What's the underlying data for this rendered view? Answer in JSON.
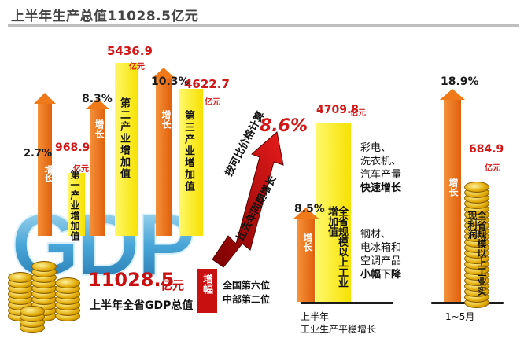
{
  "title": "上半年生产总值11028.5亿元",
  "gdp": {
    "total": "11028.5",
    "total_unit": "亿元",
    "total_label": "上半年全省GDP总值",
    "big_letters": "GDP",
    "growth": "8.6%",
    "growth_label_1": "按可比价格计算",
    "growth_label_2": "比去年同期增长",
    "growth_tag": "增幅",
    "rank_1": "全国第六位",
    "rank_2": "中部第二位"
  },
  "growth_word": "增长",
  "sectors": [
    {
      "name": "第一产业增加值",
      "value": "968.9",
      "unit": "亿元",
      "growth": "2.7%"
    },
    {
      "name": "第二产业增加值",
      "value": "5436.9",
      "unit": "亿元",
      "growth": "8.3%"
    },
    {
      "name": "第三产业增加值",
      "value": "4622.7",
      "unit": "亿元",
      "growth": "10.3%"
    }
  ],
  "industry": {
    "bar_label": "全省规模以上工业增加值",
    "value": "4709.8",
    "unit": "亿元",
    "growth": "8.5%",
    "fast_items": [
      "彩电、",
      "洗衣机、",
      "汽车产量"
    ],
    "fast_label": "快速增长",
    "slow_items": [
      "钢材、",
      "电冰箱和",
      "空调产品"
    ],
    "slow_label": "小幅下降",
    "caption_1": "上半年",
    "caption_2": "工业生产平稳增长"
  },
  "profit": {
    "bar_label": "全省规模以上工业实现利润",
    "value": "684.9",
    "unit": "亿元",
    "growth": "18.9%",
    "caption": "1~5月"
  },
  "colors": {
    "orange": "#f07a1a",
    "yellow": "#fff23a",
    "red": "#d01818",
    "blue": "#4aa6d8"
  },
  "chart_data": [
    {
      "type": "bar",
      "title": "上半年生产总值11028.5亿元",
      "categories": [
        "第一产业增加值",
        "第二产业增加值",
        "第三产业增加值"
      ],
      "series": [
        {
          "name": "",
          "values": [
            968.9,
            5436.9,
            4622.7
          ]
        },
        {
          "name": "增长",
          "values": [
            2.7,
            8.3,
            10.3
          ]
        }
      ]
    },
    {
      "type": "bar",
      "categories": [
        "全省规模以上工业增加值"
      ],
      "series": [
        {
          "name": "",
          "values": [
            4709.8
          ]
        },
        {
          "name": "增长",
          "values": [
            8.5
          ]
        }
      ]
    },
    {
      "type": "bar",
      "categories": [
        "全省规模以上工业实现利润"
      ],
      "series": [
        {
          "name": "",
          "values": [
            684.9
          ]
        },
        {
          "name": "增长",
          "values": [
            18.9
          ]
        }
      ]
    }
  ]
}
